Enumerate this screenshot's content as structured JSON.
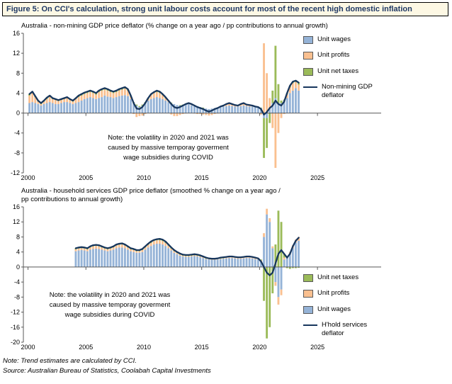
{
  "figure": {
    "title": "Figure 5: On CCI's calculation, strong unit labour costs account for most of the recent high domestic inflation"
  },
  "footer": {
    "note": "Note: Trend estimates are calculated by CCI.",
    "source": "Source: Australian Bureau of Statistics, Coolabah Capital Investments"
  },
  "colors": {
    "unit_wages": "#95B3D7",
    "unit_profits": "#FAC090",
    "unit_net_taxes": "#9BBB59",
    "deflator_line": "#17365D",
    "title_text": "#1F3864",
    "title_bg": "#FDF8E4",
    "axis": "#595959"
  },
  "chart_data": [
    {
      "type": "stacked-bar-line",
      "title": "Australia - non-mining GDP price deflator (% change on a year ago / pp contributions to annual growth)",
      "note": "Note: the volatility in 2020 and 2021 was\ncaused by massive temporay goverment\nwage subsidies during COVID",
      "x_start": 2000.0,
      "x_step": 0.25,
      "x_domain": [
        1999.6,
        2030.5
      ],
      "x_ticks": [
        2000,
        2005,
        2010,
        2015,
        2020,
        2025
      ],
      "y_domain": [
        -12,
        16
      ],
      "y_ticks": [
        16,
        12,
        8,
        4,
        0,
        -4,
        -8,
        -12
      ],
      "grid": false,
      "legend_position": "right-top",
      "bar_series": [
        {
          "name": "Unit wages",
          "color": "#95B3D7",
          "values": [
            2.0,
            2.2,
            2.0,
            1.8,
            1.5,
            1.8,
            2.0,
            2.2,
            2.0,
            1.8,
            1.8,
            2.0,
            2.2,
            2.2,
            2.0,
            1.8,
            2.0,
            2.2,
            2.5,
            2.8,
            3.0,
            3.2,
            3.0,
            2.8,
            3.0,
            3.2,
            3.5,
            3.3,
            3.2,
            3.0,
            3.2,
            3.4,
            3.5,
            3.6,
            3.4,
            2.8,
            2.0,
            1.5,
            1.2,
            1.5,
            2.0,
            2.5,
            2.8,
            3.0,
            3.2,
            3.0,
            2.8,
            2.5,
            2.2,
            2.0,
            1.8,
            1.6,
            1.5,
            1.6,
            1.8,
            1.8,
            1.6,
            1.5,
            1.4,
            1.2,
            1.0,
            0.9,
            0.8,
            0.9,
            1.0,
            1.1,
            1.2,
            1.3,
            1.4,
            1.5,
            1.4,
            1.3,
            1.3,
            1.4,
            1.5,
            1.4,
            1.3,
            1.3,
            1.2,
            1.1,
            1.0,
            -1.0,
            -1.0,
            1.0,
            2.0,
            3.0,
            2.0,
            2.0,
            2.5,
            3.0,
            4.0,
            4.5,
            5.0,
            4.5
          ]
        },
        {
          "name": "Unit profits",
          "color": "#FAC090",
          "values": [
            1.5,
            1.8,
            1.2,
            0.5,
            0.3,
            0.5,
            0.8,
            1.0,
            0.8,
            0.8,
            0.6,
            0.6,
            0.6,
            0.8,
            0.6,
            0.5,
            0.8,
            1.0,
            1.0,
            1.0,
            1.0,
            1.0,
            1.0,
            0.9,
            1.2,
            1.3,
            1.2,
            1.2,
            1.0,
            1.0,
            1.0,
            1.1,
            1.2,
            1.3,
            1.1,
            0.5,
            -0.2,
            -0.8,
            -0.6,
            -0.5,
            -0.2,
            0.3,
            0.8,
            1.0,
            1.0,
            1.0,
            0.8,
            0.5,
            0.2,
            -0.3,
            -0.6,
            -0.6,
            -0.4,
            -0.2,
            -0.1,
            0.1,
            0.1,
            -0.1,
            -0.2,
            -0.2,
            -0.3,
            -0.4,
            -0.5,
            -0.4,
            -0.2,
            -0.1,
            0.0,
            0.1,
            0.3,
            0.4,
            0.3,
            0.2,
            0.1,
            0.3,
            0.4,
            0.3,
            0.2,
            0.1,
            0.0,
            0.0,
            -0.3,
            14.0,
            8.0,
            2.0,
            -3.0,
            -11.0,
            -4.0,
            -1.0,
            -0.2,
            0.8,
            1.2,
            1.5,
            1.2,
            1.2
          ]
        },
        {
          "name": "Unit net taxes",
          "color": "#9BBB59",
          "values": [
            0.3,
            0.3,
            0.2,
            0.2,
            0.2,
            0.2,
            0.3,
            0.3,
            0.2,
            0.2,
            0.2,
            0.2,
            0.2,
            0.2,
            0.2,
            0.2,
            0.2,
            0.3,
            0.3,
            0.3,
            0.3,
            0.3,
            0.3,
            0.3,
            0.3,
            0.3,
            0.3,
            0.3,
            0.3,
            0.3,
            0.3,
            0.3,
            0.3,
            0.3,
            0.3,
            0.2,
            0.2,
            0.2,
            0.2,
            0.2,
            0.2,
            0.2,
            0.2,
            0.2,
            0.3,
            0.3,
            0.2,
            0.2,
            0.1,
            0.1,
            0.0,
            0.0,
            0.1,
            0.1,
            0.1,
            0.1,
            0.1,
            0.1,
            0.0,
            0.0,
            0.1,
            0.0,
            0.0,
            0.0,
            0.0,
            0.0,
            0.1,
            0.1,
            0.1,
            0.1,
            0.1,
            0.1,
            0.1,
            0.1,
            0.1,
            0.1,
            0.1,
            0.1,
            0.1,
            0.1,
            0.1,
            -8.0,
            -6.0,
            -2.0,
            2.5,
            10.5,
            3.8,
            0.5,
            0.2,
            0.2,
            0.3,
            0.3,
            0.3,
            0.3
          ]
        }
      ],
      "line_series": {
        "name": "Non-mining GDP deflator",
        "color": "#17365D",
        "values": [
          3.8,
          4.3,
          3.4,
          2.5,
          2.0,
          2.5,
          3.1,
          3.5,
          3.0,
          2.8,
          2.6,
          2.8,
          3.0,
          3.2,
          2.8,
          2.5,
          3.0,
          3.5,
          3.8,
          4.1,
          4.3,
          4.5,
          4.3,
          4.0,
          4.5,
          4.8,
          5.0,
          4.8,
          4.5,
          4.3,
          4.5,
          4.8,
          5.0,
          5.2,
          4.8,
          3.5,
          2.0,
          0.9,
          0.8,
          1.2,
          2.0,
          3.0,
          3.8,
          4.2,
          4.5,
          4.3,
          3.8,
          3.2,
          2.5,
          1.8,
          1.2,
          1.0,
          1.2,
          1.5,
          1.8,
          2.0,
          1.8,
          1.5,
          1.2,
          1.0,
          0.8,
          0.5,
          0.3,
          0.5,
          0.8,
          1.0,
          1.3,
          1.5,
          1.8,
          2.0,
          1.8,
          1.6,
          1.5,
          1.8,
          2.0,
          1.7,
          1.6,
          1.5,
          1.3,
          1.2,
          0.8,
          -0.3,
          0.2,
          1.0,
          1.5,
          2.5,
          1.8,
          1.5,
          2.3,
          4.0,
          5.5,
          6.3,
          6.5,
          6.1
        ]
      },
      "legend": [
        {
          "label": "Unit wages",
          "swatch": "square",
          "color": "#95B3D7"
        },
        {
          "label": "Unit profits",
          "swatch": "square",
          "color": "#FAC090"
        },
        {
          "label": "Unit net taxes",
          "swatch": "square",
          "color": "#9BBB59"
        },
        {
          "label": "Non-mining GDP deflator",
          "swatch": "line",
          "color": "#17365D"
        }
      ]
    },
    {
      "type": "stacked-bar-line",
      "title": "Australia - household services GDP price deflator (smoothed % change on a year ago /\npp contributions to annual growth)",
      "note": "Note: the volatility in 2020 and 2021 was\ncaused by massive temporay goverment\nwage subsidies during COVID",
      "x_start": 2004.0,
      "x_step": 0.25,
      "x_domain": [
        1999.6,
        2030.5
      ],
      "x_ticks": [
        2000,
        2005,
        2010,
        2015,
        2020,
        2025
      ],
      "y_domain": [
        -20,
        16
      ],
      "y_ticks": [
        16,
        12,
        8,
        4,
        0,
        -4,
        -8,
        -12,
        -16,
        -20
      ],
      "grid": false,
      "legend_position": "right-bottom",
      "bar_series": [
        {
          "name": "Unit wages",
          "color": "#95B3D7",
          "values": [
            4.2,
            4.4,
            4.5,
            4.4,
            4.2,
            4.6,
            4.8,
            4.9,
            4.8,
            4.6,
            4.4,
            4.2,
            4.4,
            4.6,
            5.0,
            5.2,
            5.2,
            5.0,
            4.6,
            4.2,
            4.0,
            3.8,
            3.8,
            4.0,
            4.6,
            5.2,
            5.6,
            6.0,
            6.2,
            6.2,
            6.0,
            5.6,
            5.0,
            4.4,
            3.8,
            3.4,
            3.0,
            2.8,
            2.7,
            2.7,
            2.8,
            2.9,
            2.8,
            2.6,
            2.4,
            2.1,
            2.0,
            1.9,
            1.9,
            2.0,
            2.1,
            2.2,
            2.3,
            2.4,
            2.4,
            2.3,
            2.2,
            2.2,
            2.3,
            2.4,
            2.4,
            2.3,
            2.1,
            2.0,
            1.5,
            8.0,
            14.0,
            12.0,
            5.0,
            -4.0,
            -8.0,
            -6.0,
            2.0,
            2.5,
            3.5,
            5.0,
            6.5,
            7.0
          ]
        },
        {
          "name": "Unit profits",
          "color": "#FAC090",
          "values": [
            0.5,
            0.5,
            0.5,
            0.5,
            0.5,
            0.6,
            0.7,
            0.7,
            0.7,
            0.6,
            0.5,
            0.5,
            0.5,
            0.6,
            0.7,
            0.7,
            0.8,
            0.7,
            0.6,
            0.5,
            0.5,
            0.4,
            0.4,
            0.5,
            0.6,
            0.7,
            0.8,
            0.9,
            0.9,
            0.9,
            0.9,
            0.8,
            0.7,
            0.5,
            0.4,
            0.3,
            0.3,
            0.2,
            0.2,
            0.2,
            0.2,
            0.2,
            0.2,
            0.2,
            0.2,
            0.1,
            0.1,
            0.1,
            0.1,
            0.1,
            0.1,
            0.1,
            0.2,
            0.2,
            0.2,
            0.2,
            0.2,
            0.2,
            0.2,
            0.2,
            0.2,
            0.2,
            0.2,
            0.1,
            0.3,
            1.0,
            1.5,
            1.0,
            0.5,
            -1.0,
            -2.0,
            -1.5,
            0.5,
            0.3,
            0.5,
            0.8,
            0.8,
            1.0
          ]
        },
        {
          "name": "Unit net taxes",
          "color": "#9BBB59",
          "values": [
            0.3,
            0.3,
            0.3,
            0.3,
            0.3,
            0.3,
            0.3,
            0.3,
            0.3,
            0.3,
            0.3,
            0.3,
            0.3,
            0.3,
            0.3,
            0.3,
            0.3,
            0.3,
            0.3,
            0.3,
            0.3,
            0.3,
            0.3,
            0.3,
            0.3,
            0.3,
            0.4,
            0.3,
            0.3,
            0.4,
            0.4,
            0.4,
            0.3,
            0.3,
            0.3,
            0.3,
            0.3,
            0.3,
            0.3,
            0.3,
            0.3,
            0.3,
            0.3,
            0.3,
            0.2,
            0.3,
            0.2,
            0.2,
            0.2,
            0.2,
            0.3,
            0.3,
            0.2,
            0.2,
            0.2,
            0.2,
            0.2,
            0.2,
            0.2,
            0.2,
            0.2,
            0.2,
            0.2,
            0.2,
            0.2,
            -9.0,
            -19.0,
            -16.0,
            -7.0,
            6.0,
            15.0,
            12.0,
            1.0,
            -0.3,
            -0.5,
            -0.3,
            -0.3,
            -0.2
          ]
        }
      ],
      "line_series": {
        "name": "H'hold services deflator",
        "color": "#17365D",
        "values": [
          5.0,
          5.2,
          5.3,
          5.2,
          5.0,
          5.5,
          5.8,
          5.9,
          5.8,
          5.5,
          5.2,
          5.0,
          5.2,
          5.5,
          6.0,
          6.2,
          6.3,
          6.0,
          5.5,
          5.0,
          4.8,
          4.5,
          4.5,
          4.8,
          5.5,
          6.2,
          6.8,
          7.2,
          7.4,
          7.5,
          7.3,
          6.8,
          6.0,
          5.2,
          4.5,
          4.0,
          3.6,
          3.3,
          3.2,
          3.2,
          3.3,
          3.4,
          3.3,
          3.1,
          2.8,
          2.5,
          2.3,
          2.2,
          2.2,
          2.3,
          2.5,
          2.6,
          2.7,
          2.8,
          2.8,
          2.7,
          2.6,
          2.6,
          2.7,
          2.8,
          2.8,
          2.7,
          2.5,
          2.3,
          1.5,
          0.0,
          -1.5,
          -2.2,
          -1.5,
          1.0,
          3.5,
          4.5,
          3.5,
          2.5,
          3.5,
          5.5,
          7.0,
          7.8
        ]
      },
      "legend": [
        {
          "label": "Unit net taxes",
          "swatch": "square",
          "color": "#9BBB59"
        },
        {
          "label": "Unit profits",
          "swatch": "square",
          "color": "#FAC090"
        },
        {
          "label": "Unit wages",
          "swatch": "square",
          "color": "#95B3D7"
        },
        {
          "label": "H'hold services deflator",
          "swatch": "line",
          "color": "#17365D"
        }
      ]
    }
  ]
}
